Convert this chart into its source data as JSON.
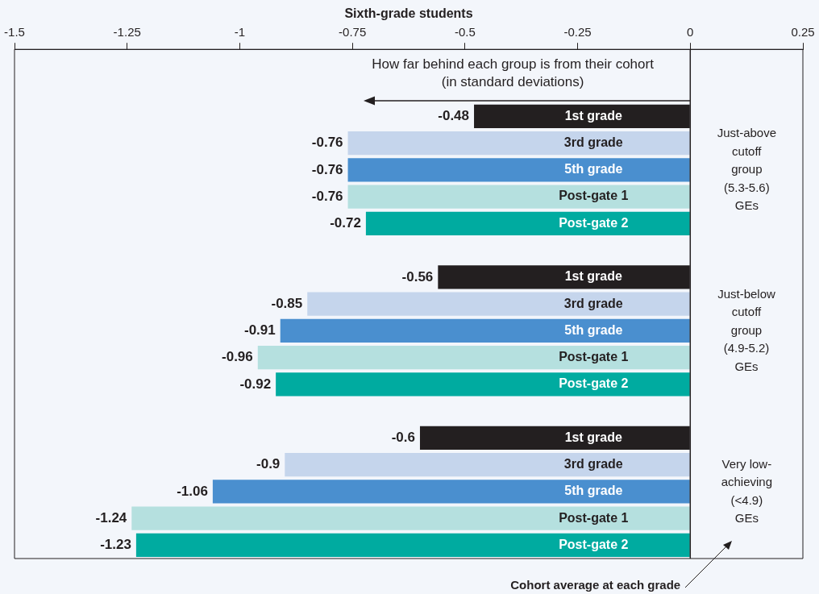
{
  "chart_data": {
    "type": "bar",
    "orientation": "horizontal",
    "title": "Sixth-grade students",
    "categories": [
      null,
      null,
      "1st grade",
      "3rd grade",
      "5th grade",
      "Post-gate 1",
      "Post-gate 2",
      null,
      "1st grade",
      "3rd grade",
      "5th grade",
      "Post-gate 1",
      "Post-gate 2",
      null,
      "1st grade",
      "3rd grade",
      "5th grade",
      "Post-gate 1",
      "Post-gate 2"
    ],
    "values": [
      null,
      null,
      -0.48,
      -0.76,
      -0.76,
      -0.76,
      -0.72,
      null,
      -0.56,
      -0.85,
      -0.91,
      -0.96,
      -0.92,
      null,
      -0.6,
      -0.9,
      -1.06,
      -1.24,
      -1.23
    ],
    "colors": [
      null,
      null,
      "#231f20",
      "#c5d5ec",
      "#4a8fcf",
      "#b5e0df",
      "#00aba0",
      null,
      "#231f20",
      "#c5d5ec",
      "#4a8fcf",
      "#b5e0df",
      "#00aba0",
      null,
      "#231f20",
      "#c5d5ec",
      "#4a8fcf",
      "#b5e0df",
      "#00aba0"
    ],
    "data_labels": true,
    "xlim": [
      -1.5,
      0.25
    ],
    "xticks": [
      -1.5,
      -1.25,
      -1,
      -0.75,
      -0.5,
      -0.25,
      0,
      0.25
    ],
    "ref_lines": [
      {
        "axis": "x",
        "value": 0,
        "label": "Cohort average at each grade",
        "color": "#231f20"
      }
    ],
    "annotations": [
      "How far behind each group is from their cohort\n(in standard deviations)",
      "Just-above\ncutoff\ngroup\n(5.3-5.6)\nGEs",
      "Just-below\ncutoff\ngroup\n(4.9-5.2)\nGEs",
      "Very low-\nachieving\n(<4.9)\nGEs"
    ],
    "grid": false,
    "legend": false
  }
}
